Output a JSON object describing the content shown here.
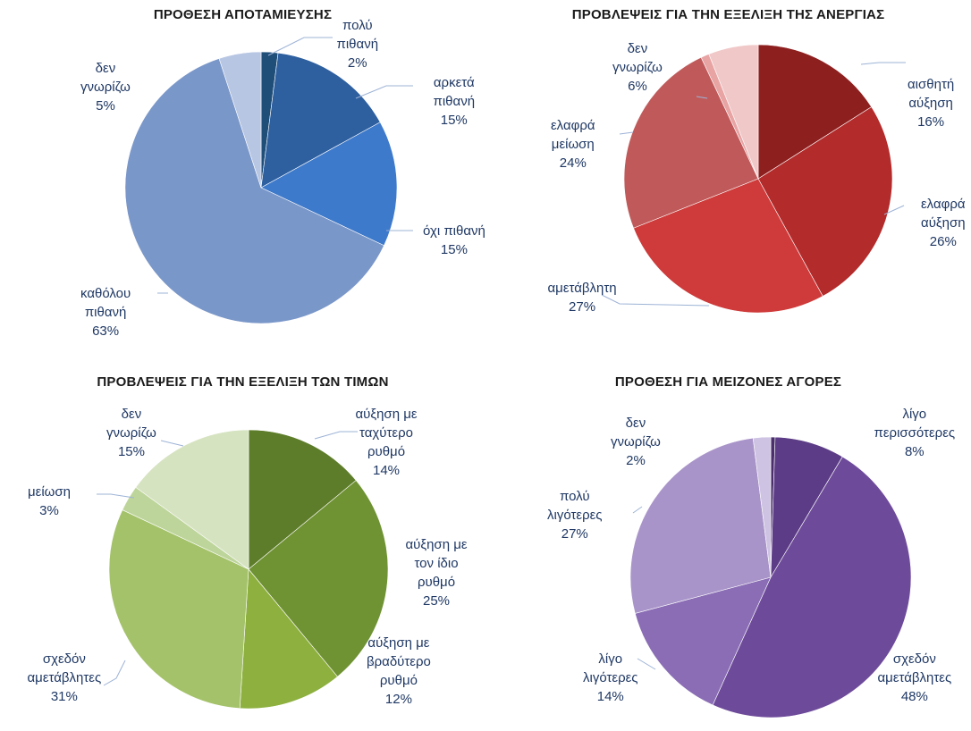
{
  "chart_data": [
    {
      "type": "pie",
      "title": "ΠΡΟΘΕΣΗ ΑΠΟΤΑΜΙΕΥΣΗΣ",
      "slices": [
        {
          "lines": [
            "πολύ",
            "πιθανή"
          ],
          "value": 2,
          "pct": "2%",
          "color": "#1f4e79"
        },
        {
          "lines": [
            "αρκετά",
            "πιθανή"
          ],
          "value": 15,
          "pct": "15%",
          "color": "#2e5f9f"
        },
        {
          "lines": [
            "όχι πιθανή"
          ],
          "value": 15,
          "pct": "15%",
          "color": "#3e7acb"
        },
        {
          "lines": [
            "καθόλου",
            "πιθανή"
          ],
          "value": 63,
          "pct": "63%",
          "color": "#7a97c9"
        },
        {
          "lines": [
            "δεν",
            "γνωρίζω"
          ],
          "value": 5,
          "pct": "5%",
          "color": "#b7c6e3"
        }
      ]
    },
    {
      "type": "pie",
      "title": "ΠΡΟΒΛΕΨΕΙΣ ΓΙΑ ΤΗΝ ΕΞΕΛΙΞΗ ΤΗΣ ΑΝΕΡΓΙΑΣ",
      "slices": [
        {
          "lines": [
            "αισθητή",
            "αύξηση"
          ],
          "value": 16,
          "pct": "16%",
          "color": "#8e1f1f"
        },
        {
          "lines": [
            "ελαφρά",
            "αύξηση"
          ],
          "value": 26,
          "pct": "26%",
          "color": "#b32b2b"
        },
        {
          "lines": [
            "αμετάβλητη"
          ],
          "value": 27,
          "pct": "27%",
          "color": "#cf3a3a"
        },
        {
          "lines": [
            "ελαφρά",
            "μείωση"
          ],
          "value": 24,
          "pct": "24%",
          "color": "#c05a5a"
        },
        {
          "lines": [
            "",
            ""
          ],
          "value": 1,
          "pct": "",
          "color": "#e8a3a3"
        },
        {
          "lines": [
            "δεν",
            "γνωρίζω"
          ],
          "value": 6,
          "pct": "6%",
          "color": "#f0c8c8"
        }
      ]
    },
    {
      "type": "pie",
      "title": "ΠΡΟΒΛΕΨΕΙΣ ΓΙΑ ΤΗΝ ΕΞΕΛΙΞΗ ΤΩΝ ΤΙΜΩΝ",
      "slices": [
        {
          "lines": [
            "αύξηση με",
            "ταχύτερο",
            "ρυθμό"
          ],
          "value": 14,
          "pct": "14%",
          "color": "#5e7d2b"
        },
        {
          "lines": [
            "αύξηση με",
            "τον ίδιο",
            "ρυθμό"
          ],
          "value": 25,
          "pct": "25%",
          "color": "#6f9233"
        },
        {
          "lines": [
            "αύξηση με",
            "βραδύτερο",
            "ρυθμό"
          ],
          "value": 12,
          "pct": "12%",
          "color": "#8db03f"
        },
        {
          "lines": [
            "σχεδόν",
            "αμετάβλητες"
          ],
          "value": 31,
          "pct": "31%",
          "color": "#a4c26a"
        },
        {
          "lines": [
            "μείωση"
          ],
          "value": 3,
          "pct": "3%",
          "color": "#bdd59a"
        },
        {
          "lines": [
            "δεν",
            "γνωρίζω"
          ],
          "value": 15,
          "pct": "15%",
          "color": "#d6e3c1"
        }
      ]
    },
    {
      "type": "pie",
      "title": "ΠΡΟΘΕΣΗ ΓΙΑ ΜΕΙΖΟΝΕΣ ΑΓΟΡΕΣ",
      "slices": [
        {
          "lines": [
            "",
            ""
          ],
          "value": 0.5,
          "pct": "",
          "color": "#4a2f6b"
        },
        {
          "lines": [
            "λίγο",
            "περισσότερες"
          ],
          "value": 8,
          "pct": "8%",
          "color": "#5c3c86"
        },
        {
          "lines": [
            "σχεδόν",
            "αμετάβλητες"
          ],
          "value": 48,
          "pct": "48%",
          "color": "#6e4b9a"
        },
        {
          "lines": [
            "λίγο",
            "λιγότερες"
          ],
          "value": 14,
          "pct": "14%",
          "color": "#8a6db5"
        },
        {
          "lines": [
            "πολύ",
            "λιγότερες"
          ],
          "value": 27,
          "pct": "27%",
          "color": "#a994c9"
        },
        {
          "lines": [
            "δεν",
            "γνωρίζω"
          ],
          "value": 2,
          "pct": "2%",
          "color": "#cec3e2"
        }
      ]
    }
  ]
}
